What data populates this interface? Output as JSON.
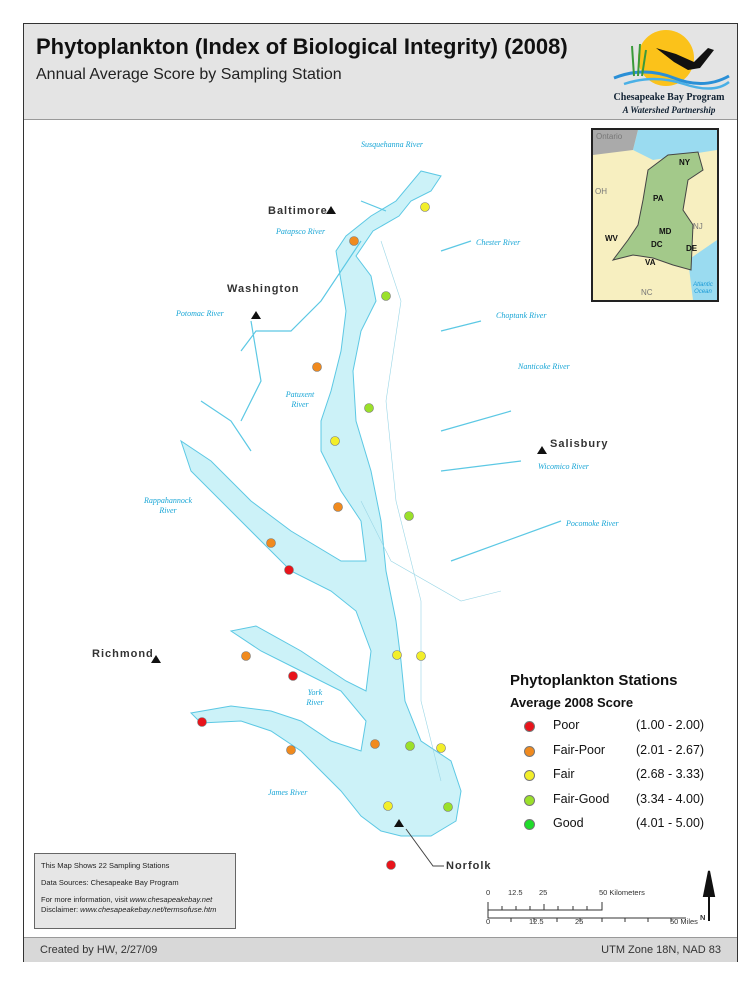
{
  "header": {
    "title": "Phytoplankton (Index of Biological Integrity) (2008)",
    "subtitle": "Annual Average Score by Sampling Station"
  },
  "logo": {
    "line1": "Chesapeake Bay Program",
    "line2": "A Watershed Partnership"
  },
  "cities": {
    "baltimore": "Baltimore",
    "washington": "Washington",
    "salisbury": "Salisbury",
    "richmond": "Richmond",
    "norfolk": "Norfolk"
  },
  "rivers": {
    "susquehanna": "Susquehanna River",
    "patapsco": "Patapsco River",
    "chester": "Chester River",
    "potomac": "Potomac River",
    "choptank": "Choptank River",
    "patuxent": "Patuxent River",
    "nanticoke": "Nanticoke River",
    "wicomico": "Wicomico River",
    "rappahannock": "Rappahannock River",
    "pocomoke": "Pocomoke River",
    "york": "York River",
    "james": "James River"
  },
  "inset": {
    "labels": [
      "Ontario",
      "NY",
      "OH",
      "PA",
      "NJ",
      "WV",
      "MD",
      "DC",
      "DE",
      "VA",
      "NC",
      "Atlantic Ocean"
    ]
  },
  "legend": {
    "title": "Phytoplankton Stations",
    "subtitle": "Average 2008 Score",
    "classes": [
      {
        "name": "Poor",
        "range": "(1.00 - 2.00)",
        "color": "#e8141b"
      },
      {
        "name": "Fair-Poor",
        "range": "(2.01 - 2.67)",
        "color": "#f08a1e"
      },
      {
        "name": "Fair",
        "range": "(2.68 - 3.33)",
        "color": "#f2ee2a"
      },
      {
        "name": "Fair-Good",
        "range": "(3.34 - 4.00)",
        "color": "#9be02a"
      },
      {
        "name": "Good",
        "range": "(4.01 - 5.00)",
        "color": "#1fdc2a"
      }
    ]
  },
  "stations": [
    "Fair",
    "Fair-Poor",
    "Fair-Good",
    "Fair-Poor",
    "Fair-Good",
    "Fair",
    "Fair-Poor",
    "Fair-Good",
    "Fair-Poor",
    "Poor",
    "Fair",
    "Fair",
    "Fair-Poor",
    "Poor",
    "Poor",
    "Fair-Poor",
    "Fair-Good",
    "Fair",
    "Fair-Poor",
    "Fair",
    "Fair-Good",
    "Poor"
  ],
  "info": {
    "line1": "This Map Shows 22 Sampling Stations",
    "line2": "Data Sources:  Chesapeake Bay Program",
    "line3_prefix": "For more information, visit ",
    "line3_link": "www.chesapeakebay.net",
    "line4_prefix": "Disclaimer: ",
    "line4_link": "www.chesapeakebay.net/termsofuse.htm"
  },
  "scale": {
    "km_ticks": [
      "0",
      "12.5",
      "25",
      "50 Kilometers"
    ],
    "mi_ticks": [
      "0",
      "12.5",
      "25",
      "50 Miles"
    ],
    "north": "N"
  },
  "footer": {
    "left": "Created by HW, 2/27/09",
    "right": "UTM Zone 18N, NAD 83"
  },
  "colors": {
    "water": "#ccf2f8",
    "water_line": "#5cc8e4",
    "header_bg": "#e4e4e4"
  }
}
